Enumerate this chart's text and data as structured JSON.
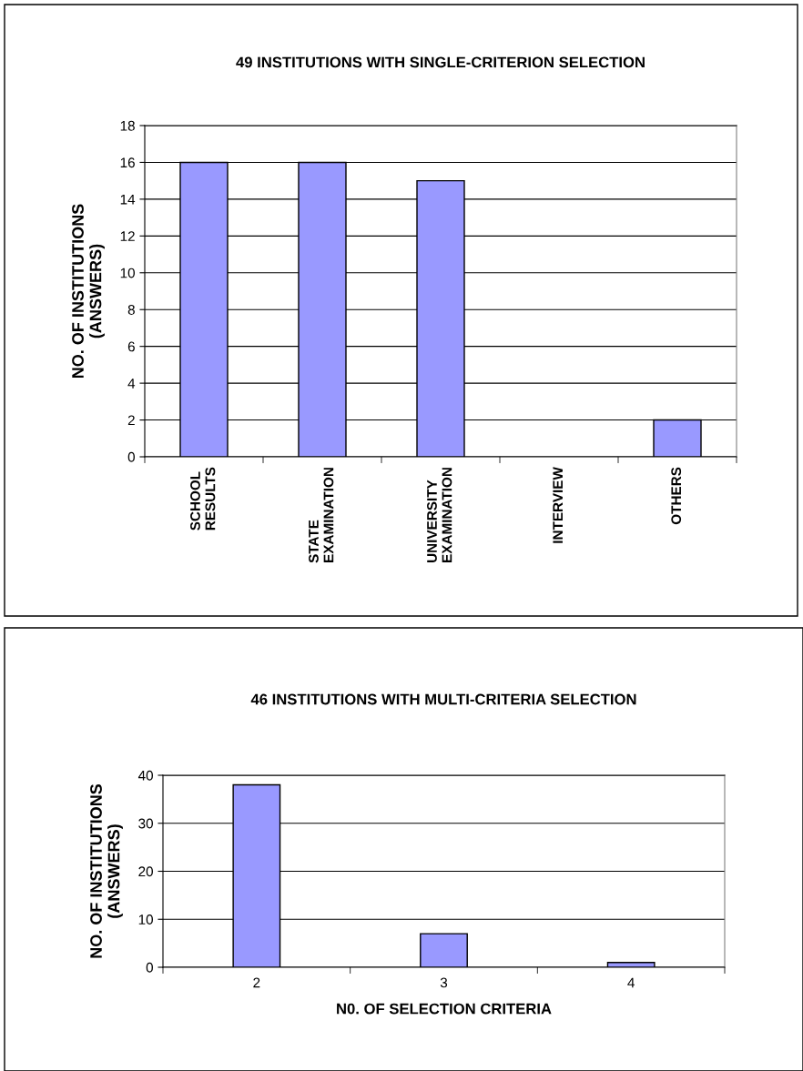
{
  "chart_data": [
    {
      "type": "bar",
      "title": "49 INSTITUTIONS WITH SINGLE-CRITERION SELECTION",
      "ylabel": "NO. OF INSTITUTIONS\n(ANSWERS)",
      "categories": [
        "SCHOOL\nRESULTS",
        "STATE\nEXAMINATION",
        "UNIVERSITY\nEXAMINATION",
        "INTERVIEW",
        "OTHERS"
      ],
      "values": [
        16,
        16,
        15,
        0,
        2
      ],
      "color": "#9999ff",
      "ylim": [
        0,
        18
      ],
      "yticks": [
        0,
        2,
        4,
        6,
        8,
        10,
        12,
        14,
        16,
        18
      ],
      "grid": "y"
    },
    {
      "type": "bar",
      "title": "46 INSTITUTIONS WITH MULTI-CRITERIA SELECTION",
      "ylabel": "NO. OF INSTITUTIONS\n(ANSWERS)",
      "xlabel": "N0. OF SELECTION CRITERIA",
      "categories": [
        "2",
        "3",
        "4"
      ],
      "values": [
        38,
        7,
        1
      ],
      "color": "#9999ff",
      "ylim": [
        0,
        40
      ],
      "yticks": [
        0,
        10,
        20,
        30,
        40
      ],
      "grid": "y"
    }
  ]
}
